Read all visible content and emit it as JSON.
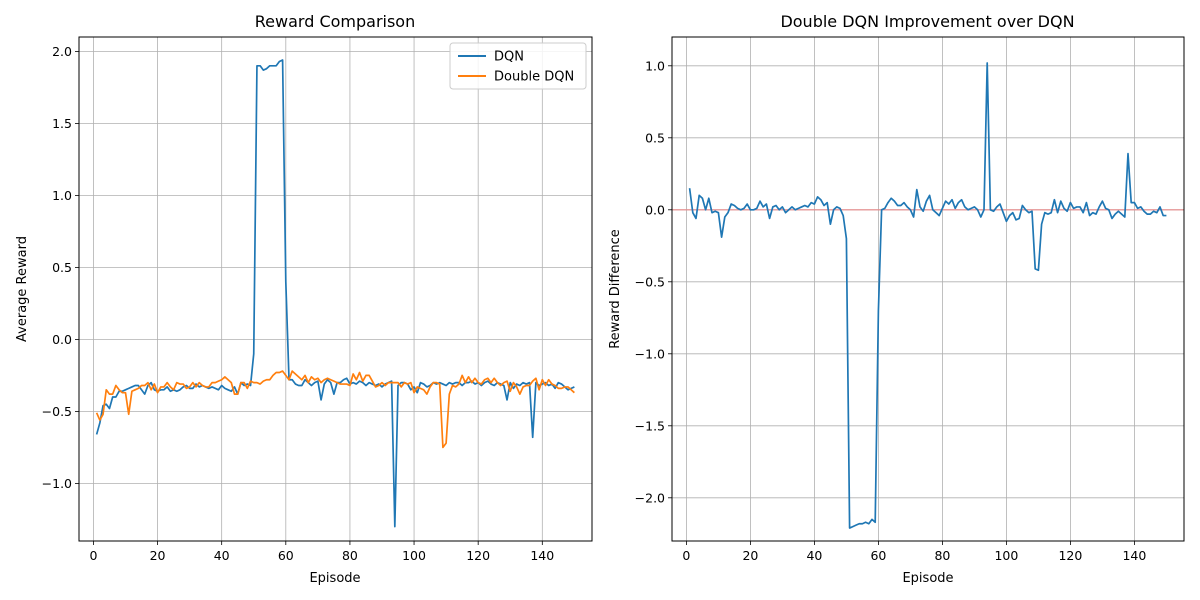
{
  "chart_data": [
    {
      "type": "line",
      "title": "Reward Comparison",
      "xlabel": "Episode",
      "ylabel": "Average Reward",
      "xlim": [
        -4.5,
        155.5
      ],
      "ylim": [
        -1.4,
        2.1
      ],
      "xticks": [
        0,
        20,
        40,
        60,
        80,
        100,
        120,
        140
      ],
      "yticks": [
        -1.0,
        -0.5,
        0.0,
        0.5,
        1.0,
        1.5,
        2.0
      ],
      "grid": true,
      "legend": "top-right",
      "series": [
        {
          "name": "DQN",
          "color": "#1f77b4",
          "x_start": 1,
          "values": [
            -0.66,
            -0.58,
            -0.46,
            -0.45,
            -0.48,
            -0.4,
            -0.4,
            -0.36,
            -0.36,
            -0.35,
            -0.34,
            -0.33,
            -0.32,
            -0.32,
            -0.35,
            -0.38,
            -0.32,
            -0.3,
            -0.35,
            -0.36,
            -0.35,
            -0.35,
            -0.33,
            -0.36,
            -0.35,
            -0.36,
            -0.35,
            -0.33,
            -0.32,
            -0.34,
            -0.34,
            -0.31,
            -0.33,
            -0.32,
            -0.33,
            -0.34,
            -0.33,
            -0.34,
            -0.35,
            -0.32,
            -0.34,
            -0.35,
            -0.36,
            -0.33,
            -0.38,
            -0.3,
            -0.32,
            -0.31,
            -0.32,
            -0.1,
            1.9,
            1.9,
            1.87,
            1.88,
            1.9,
            1.9,
            1.9,
            1.93,
            1.94,
            0.4,
            -0.28,
            -0.28,
            -0.31,
            -0.32,
            -0.32,
            -0.28,
            -0.3,
            -0.32,
            -0.3,
            -0.29,
            -0.42,
            -0.31,
            -0.28,
            -0.3,
            -0.38,
            -0.3,
            -0.3,
            -0.28,
            -0.27,
            -0.31,
            -0.3,
            -0.31,
            -0.29,
            -0.3,
            -0.32,
            -0.3,
            -0.31,
            -0.32,
            -0.31,
            -0.33,
            -0.31,
            -0.3,
            -0.29,
            -1.3,
            -0.32,
            -0.3,
            -0.3,
            -0.31,
            -0.35,
            -0.33,
            -0.37,
            -0.3,
            -0.31,
            -0.33,
            -0.32,
            -0.3,
            -0.31,
            -0.3,
            -0.31,
            -0.32,
            -0.3,
            -0.31,
            -0.3,
            -0.3,
            -0.32,
            -0.3,
            -0.3,
            -0.29,
            -0.31,
            -0.3,
            -0.32,
            -0.3,
            -0.29,
            -0.31,
            -0.32,
            -0.3,
            -0.31,
            -0.32,
            -0.42,
            -0.3,
            -0.34,
            -0.31,
            -0.32,
            -0.3,
            -0.31,
            -0.3,
            -0.68,
            -0.3,
            -0.32,
            -0.31,
            -0.3,
            -0.32,
            -0.31,
            -0.34,
            -0.3,
            -0.31,
            -0.33,
            -0.35,
            -0.34,
            -0.33
          ]
        },
        {
          "name": "Double DQN",
          "color": "#ff7f0e",
          "x_start": 1,
          "values": [
            -0.51,
            -0.56,
            -0.52,
            -0.35,
            -0.38,
            -0.38,
            -0.32,
            -0.35,
            -0.37,
            -0.37,
            -0.52,
            -0.36,
            -0.35,
            -0.34,
            -0.32,
            -0.32,
            -0.3,
            -0.35,
            -0.31,
            -0.37,
            -0.33,
            -0.33,
            -0.3,
            -0.33,
            -0.35,
            -0.3,
            -0.31,
            -0.31,
            -0.34,
            -0.33,
            -0.3,
            -0.33,
            -0.3,
            -0.32,
            -0.33,
            -0.33,
            -0.3,
            -0.3,
            -0.29,
            -0.28,
            -0.26,
            -0.28,
            -0.3,
            -0.38,
            -0.38,
            -0.3,
            -0.3,
            -0.34,
            -0.29,
            -0.3,
            -0.3,
            -0.31,
            -0.29,
            -0.28,
            -0.28,
            -0.25,
            -0.23,
            -0.23,
            -0.22,
            -0.25,
            -0.28,
            -0.22,
            -0.24,
            -0.26,
            -0.28,
            -0.25,
            -0.3,
            -0.26,
            -0.28,
            -0.27,
            -0.3,
            -0.28,
            -0.27,
            -0.28,
            -0.29,
            -0.3,
            -0.31,
            -0.31,
            -0.31,
            -0.32,
            -0.24,
            -0.28,
            -0.23,
            -0.29,
            -0.25,
            -0.25,
            -0.29,
            -0.33,
            -0.32,
            -0.3,
            -0.32,
            -0.3,
            -0.3,
            -0.3,
            -0.3,
            -0.33,
            -0.3,
            -0.31,
            -0.3,
            -0.37,
            -0.33,
            -0.34,
            -0.35,
            -0.38,
            -0.33,
            -0.3,
            -0.3,
            -0.31,
            -0.75,
            -0.72,
            -0.38,
            -0.32,
            -0.33,
            -0.31,
            -0.25,
            -0.3,
            -0.26,
            -0.3,
            -0.27,
            -0.3,
            -0.31,
            -0.28,
            -0.27,
            -0.3,
            -0.27,
            -0.3,
            -0.32,
            -0.3,
            -0.29,
            -0.36,
            -0.3,
            -0.33,
            -0.38,
            -0.33,
            -0.32,
            -0.32,
            -0.29,
            -0.27,
            -0.35,
            -0.28,
            -0.32,
            -0.28,
            -0.31,
            -0.32,
            -0.34,
            -0.34,
            -0.33,
            -0.33,
            -0.35,
            -0.37
          ]
        }
      ]
    },
    {
      "type": "line",
      "title": "Double DQN Improvement over DQN",
      "xlabel": "Episode",
      "ylabel": "Reward Difference",
      "xlim": [
        -4.5,
        155.5
      ],
      "ylim": [
        -2.3,
        1.2
      ],
      "xticks": [
        0,
        20,
        40,
        60,
        80,
        100,
        120,
        140
      ],
      "yticks": [
        -2.0,
        -1.5,
        -1.0,
        -0.5,
        0.0,
        0.5,
        1.0
      ],
      "grid": true,
      "reference_line": {
        "y": 0,
        "color": "#e88a8a"
      },
      "series": [
        {
          "color": "#1f77b4",
          "x_start": 1,
          "values": [
            0.15,
            -0.02,
            -0.06,
            0.1,
            0.08,
            0.0,
            0.08,
            -0.02,
            -0.01,
            -0.02,
            -0.19,
            -0.05,
            -0.02,
            0.04,
            0.03,
            0.01,
            0.0,
            0.01,
            0.04,
            0.0,
            0.0,
            0.01,
            0.06,
            0.02,
            0.04,
            -0.06,
            0.02,
            0.03,
            0.0,
            0.02,
            -0.02,
            0.0,
            0.02,
            0.0,
            0.01,
            0.02,
            0.03,
            0.02,
            0.05,
            0.04,
            0.09,
            0.07,
            0.03,
            0.05,
            -0.1,
            0.0,
            0.02,
            0.01,
            -0.04,
            -0.2,
            -2.21,
            -2.2,
            -2.19,
            -2.18,
            -2.18,
            -2.17,
            -2.18,
            -2.15,
            -2.17,
            -0.7,
            0.0,
            0.01,
            0.05,
            0.08,
            0.06,
            0.03,
            0.03,
            0.05,
            0.02,
            0.0,
            -0.05,
            0.14,
            0.02,
            -0.01,
            0.06,
            0.1,
            0.0,
            -0.02,
            -0.04,
            0.01,
            0.06,
            0.04,
            0.07,
            0.01,
            0.05,
            0.07,
            0.02,
            0.0,
            0.01,
            0.02,
            0.0,
            -0.05,
            0.0,
            1.02,
            0.0,
            -0.01,
            0.02,
            0.04,
            -0.02,
            -0.08,
            -0.04,
            -0.02,
            -0.07,
            -0.06,
            0.03,
            0.0,
            -0.02,
            -0.01,
            -0.41,
            -0.42,
            -0.1,
            -0.02,
            -0.03,
            -0.02,
            0.07,
            -0.02,
            0.06,
            0.01,
            -0.01,
            0.05,
            0.01,
            0.02,
            0.02,
            -0.02,
            0.05,
            -0.04,
            -0.02,
            -0.03,
            0.02,
            0.06,
            0.01,
            0.0,
            -0.06,
            -0.03,
            -0.01,
            -0.03,
            -0.05,
            0.39,
            0.05,
            0.05,
            0.01,
            0.02,
            -0.01,
            -0.03,
            -0.03,
            -0.01,
            -0.02,
            0.02,
            -0.04,
            -0.04
          ]
        }
      ]
    }
  ]
}
